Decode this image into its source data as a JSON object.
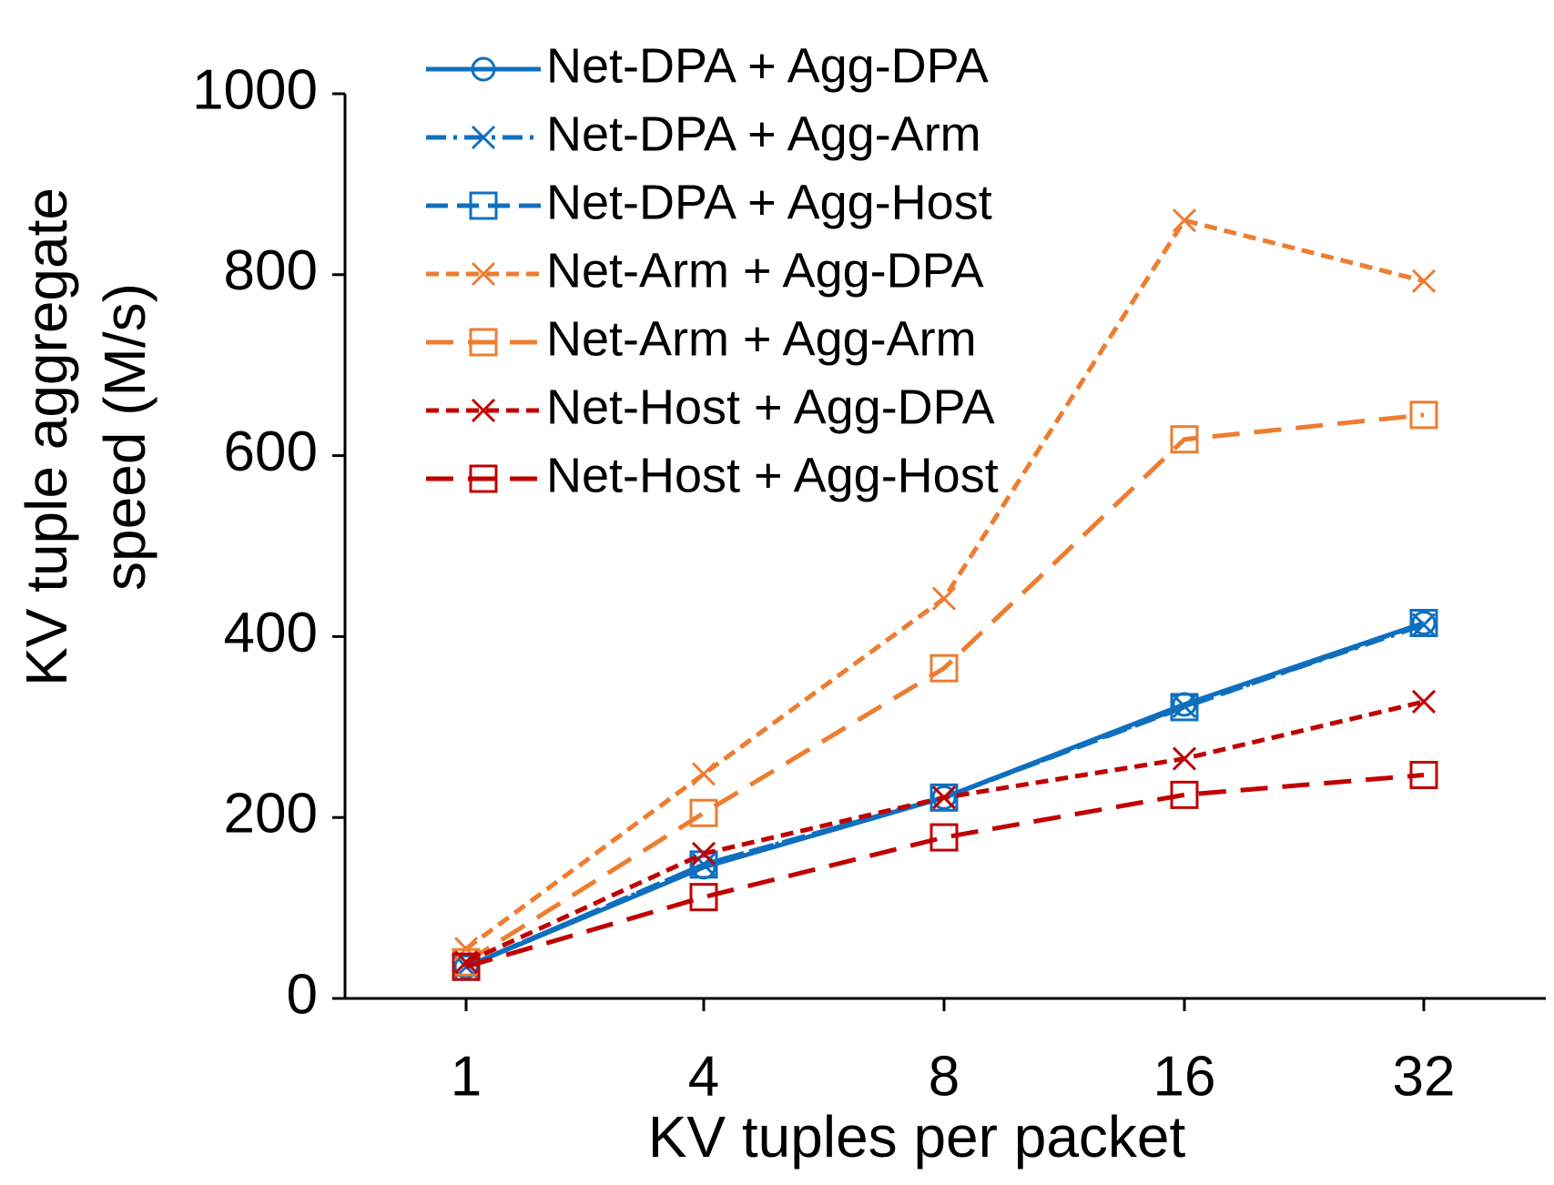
{
  "chart_data": {
    "type": "line",
    "xlabel": "KV tuples per packet",
    "ylabel": [
      "KV tuple aggregate",
      "speed (M/s)"
    ],
    "categories": [
      "1",
      "4",
      "8",
      "16",
      "32"
    ],
    "ylim": [
      0,
      1000
    ],
    "yticks": [
      0,
      200,
      400,
      600,
      800,
      1000
    ],
    "legend": "upper left",
    "series": [
      {
        "name": "Net-DPA + Agg-DPA",
        "color": "#0f6fbf",
        "marker": "circle",
        "dash": "solid",
        "values": [
          35,
          145,
          222,
          325,
          415
        ]
      },
      {
        "name": "Net-DPA + Agg-Arm",
        "color": "#0f6fbf",
        "marker": "x",
        "dash": "dashdot",
        "values": [
          35,
          148,
          222,
          323,
          413
        ]
      },
      {
        "name": "Net-DPA + Agg-Host",
        "color": "#0f6fbf",
        "marker": "square",
        "dash": "dashed",
        "values": [
          35,
          148,
          222,
          322,
          415
        ]
      },
      {
        "name": "Net-Arm + Agg-DPA",
        "color": "#ed7d31",
        "marker": "x",
        "dash": "short",
        "values": [
          55,
          248,
          442,
          860,
          793
        ]
      },
      {
        "name": "Net-Arm + Agg-Arm",
        "color": "#ed7d31",
        "marker": "square",
        "dash": "long",
        "values": [
          40,
          205,
          365,
          618,
          645
        ]
      },
      {
        "name": "Net-Host + Agg-DPA",
        "color": "#c00000",
        "marker": "x",
        "dash": "short",
        "values": [
          40,
          160,
          222,
          265,
          328
        ]
      },
      {
        "name": "Net-Host + Agg-Host",
        "color": "#c00000",
        "marker": "square",
        "dash": "long",
        "values": [
          35,
          112,
          178,
          225,
          247
        ]
      }
    ]
  }
}
